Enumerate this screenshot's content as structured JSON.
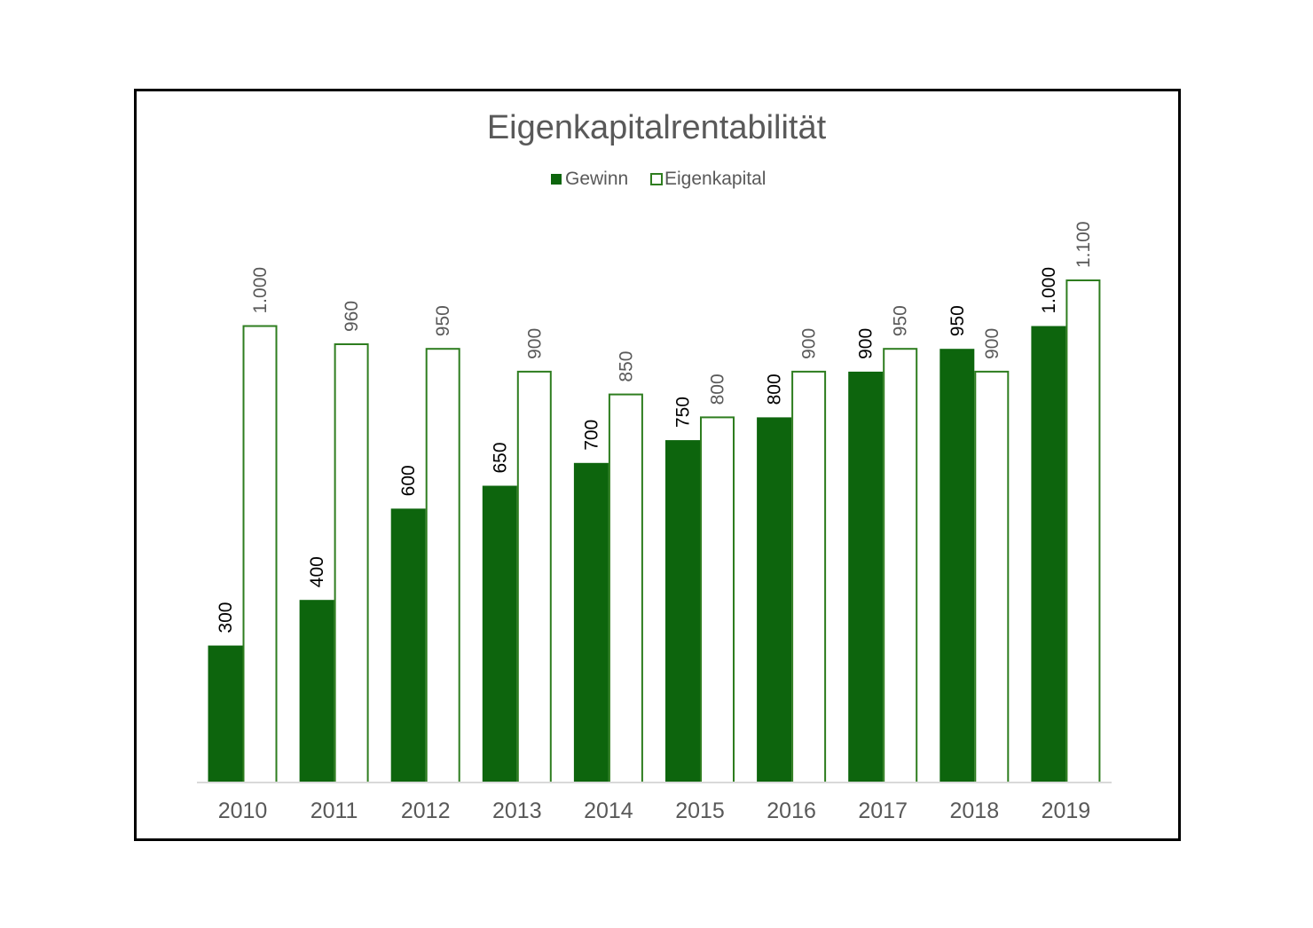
{
  "chart_data": {
    "type": "bar",
    "title": "Eigenkapitalrentabilität",
    "xlabel": "",
    "ylabel": "",
    "categories": [
      "2010",
      "2011",
      "2012",
      "2013",
      "2014",
      "2015",
      "2016",
      "2017",
      "2018",
      "2019"
    ],
    "series": [
      {
        "name": "Gewinn",
        "values": [
          300,
          400,
          600,
          650,
          700,
          750,
          800,
          900,
          950,
          1000
        ],
        "labels": [
          "300",
          "400",
          "600",
          "650",
          "700",
          "750",
          "800",
          "900",
          "950",
          "1.000"
        ],
        "style": "filled",
        "color": "#0d650d",
        "label_color": "#000000"
      },
      {
        "name": "Eigenkapital",
        "values": [
          1000,
          960,
          950,
          900,
          850,
          800,
          900,
          950,
          900,
          1100
        ],
        "labels": [
          "1.000",
          "960",
          "950",
          "900",
          "850",
          "800",
          "900",
          "950",
          "900",
          "1.100"
        ],
        "style": "outline",
        "color": "#2e7d1f",
        "label_color": "#595959"
      }
    ],
    "ylim": [
      0,
      1100
    ],
    "grid": false,
    "legend": "top-center",
    "colors": {
      "title": "#595959",
      "tick_label": "#595959",
      "axis_line": "#d9d9d9",
      "legend_text": "#595959"
    }
  }
}
